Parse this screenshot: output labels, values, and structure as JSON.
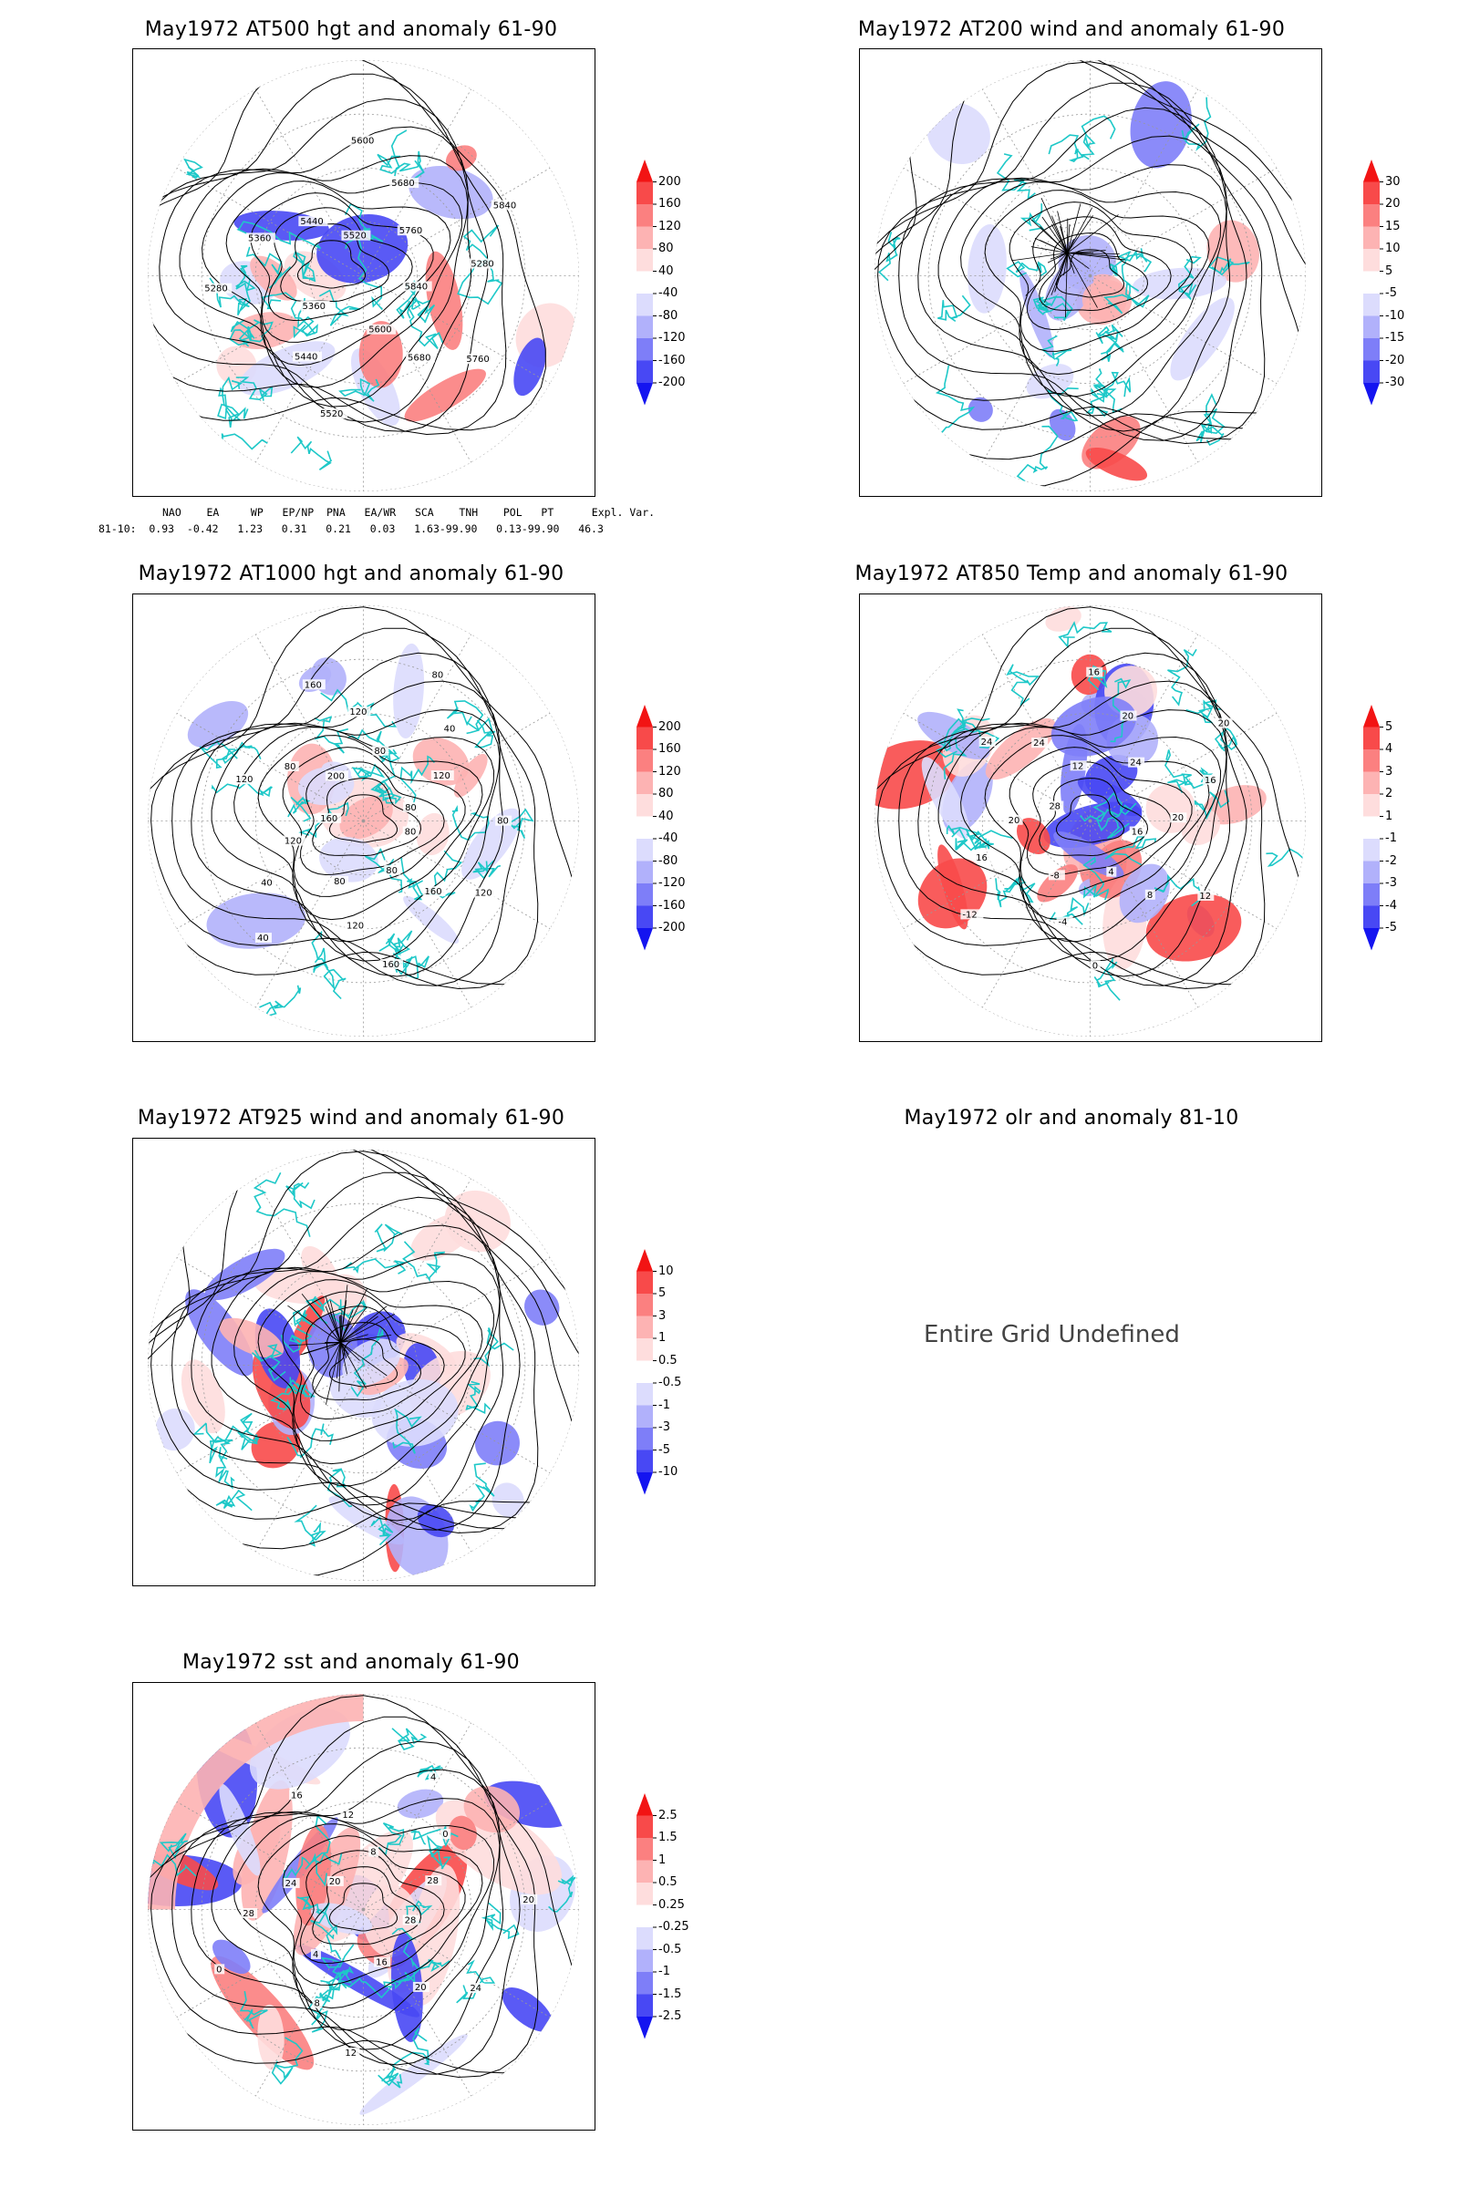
{
  "panels": [
    {
      "id": "p500",
      "title": "May1972 AT500 hgt and anomaly 61-90",
      "colorbar": [
        "200",
        "160",
        "120",
        "80",
        "40",
        "-40",
        "-80",
        "-120",
        "-160",
        "-200"
      ],
      "contours": [
        "5840",
        "5760",
        "5680",
        "5600",
        "5520",
        "5440",
        "5360",
        "5280",
        "5360",
        "5440",
        "5520",
        "5600",
        "5680",
        "5760",
        "5840",
        "5280"
      ]
    },
    {
      "id": "p200",
      "title": "May1972 AT200 wind and anomaly 61-90",
      "colorbar": [
        "30",
        "20",
        "15",
        "10",
        "5",
        "-5",
        "-10",
        "-15",
        "-20",
        "-30"
      ]
    },
    {
      "id": "p1000",
      "title": "May1972 AT1000 hgt and anomaly 61-90",
      "colorbar": [
        "200",
        "160",
        "120",
        "80",
        "40",
        "-40",
        "-80",
        "-120",
        "-160",
        "-200"
      ],
      "contours": [
        "80",
        "120",
        "160",
        "80",
        "160",
        "120",
        "80",
        "40",
        "40",
        "120",
        "160",
        "120",
        "80",
        "200",
        "160",
        "120",
        "80",
        "80",
        "40",
        "120",
        "80",
        "80"
      ]
    },
    {
      "id": "p850",
      "title": "May1972 AT850 Temp and anomaly 61-90",
      "colorbar": [
        "5",
        "4",
        "3",
        "2",
        "1",
        "-1",
        "-2",
        "-3",
        "-4",
        "-5"
      ],
      "contours": [
        "16",
        "12",
        "8",
        "4",
        "0",
        "-4",
        "-8",
        "-12",
        "16",
        "20",
        "28",
        "24",
        "24",
        "12",
        "16",
        "20",
        "24",
        "20",
        "16",
        "20"
      ]
    },
    {
      "id": "p925",
      "title": "May1972 AT925 wind and anomaly 61-90",
      "colorbar": [
        "10",
        "5",
        "3",
        "1",
        "0.5",
        "-0.5",
        "-1",
        "-3",
        "-5",
        "-10"
      ]
    },
    {
      "id": "polr",
      "title": "May1972 olr and anomaly 81-10",
      "undefined_text": "Entire Grid Undefined"
    },
    {
      "id": "psst",
      "title": "May1972 sst and anomaly 61-90",
      "colorbar": [
        "2.5",
        "1.5",
        "1",
        "0.5",
        "0.25",
        "-0.25",
        "-0.5",
        "-1",
        "-1.5",
        "-2.5"
      ],
      "contours": [
        "28",
        "24",
        "20",
        "16",
        "12",
        "8",
        "4",
        "0",
        "28",
        "24",
        "20",
        "16",
        "12",
        "8",
        "4",
        "0",
        "28",
        "20"
      ]
    }
  ],
  "indices": {
    "header": "NAO    EA     WP   EP/NP  PNA   EA/WR   SCA    TNH    POL   PT      Expl. Var.",
    "row": "81-10:  0.93  -0.42   1.23   0.31   0.21   0.03   1.63-99.90   0.13-99.90   46.3"
  },
  "colors": {
    "frame": "#000000",
    "coast": "#1ec8c8",
    "pos": [
      "#f21414",
      "#f84a4a",
      "#fb8080",
      "#fdb3b3",
      "#fedddd"
    ],
    "neg": [
      "#dcdcfd",
      "#b1b1fb",
      "#7e7ef8",
      "#4848f4",
      "#1414f0"
    ]
  }
}
